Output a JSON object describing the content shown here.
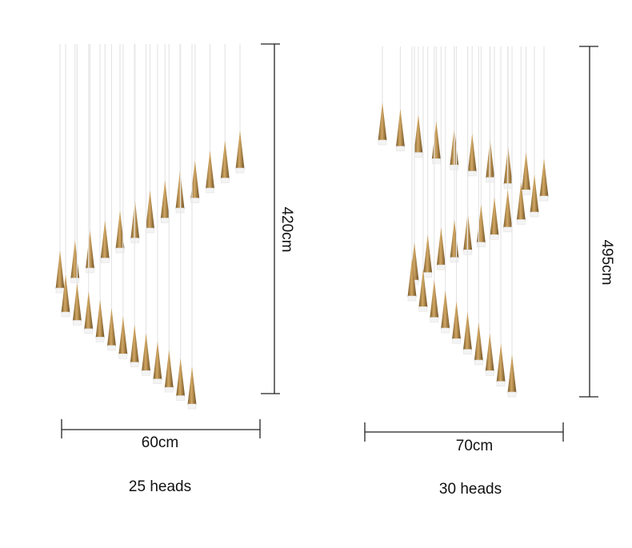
{
  "left": {
    "height": "420cm",
    "width": "60cm",
    "heads": "25 heads"
  },
  "right": {
    "height": "495cm",
    "width": "70cm",
    "heads": "30 heads"
  }
}
